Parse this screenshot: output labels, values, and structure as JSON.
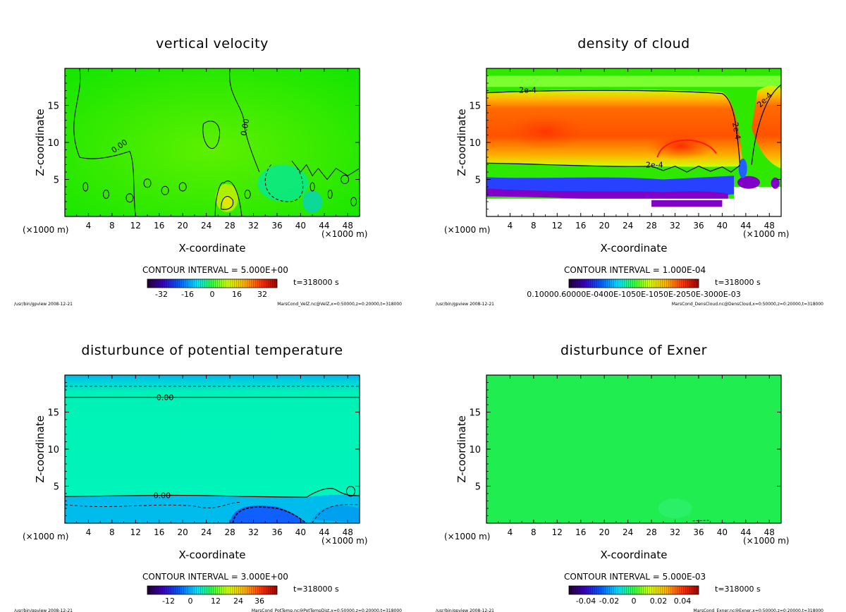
{
  "panels": [
    {
      "title": "vertical velocity",
      "xlabel": "X-coordinate",
      "ylabel": "Z-coordinate",
      "x_unit_left": "(×1000 m)",
      "x_unit_right": "(×1000 m)",
      "x_ticks": [
        "4",
        "8",
        "12",
        "16",
        "20",
        "24",
        "28",
        "32",
        "36",
        "40",
        "44",
        "48"
      ],
      "y_ticks": [
        "5",
        "10",
        "15"
      ],
      "contour_interval": "CONTOUR INTERVAL = 5.000E+00",
      "time": "t=318000 s",
      "colorbar_labels": [
        "-32",
        "-16",
        "0",
        "16",
        "32"
      ],
      "footer_left": "/usr/bin/gpview  2008-12-21",
      "footer_right": "MarsCond_VelZ.nc@VelZ,x=0:50000,z=0:20000,t=318000",
      "contour_labels": [
        "0.00",
        "0.00"
      ]
    },
    {
      "title": "density of cloud",
      "xlabel": "X-coordinate",
      "ylabel": "Z-coordinate",
      "x_unit_left": "(×1000 m)",
      "x_unit_right": "(×1000 m)",
      "x_ticks": [
        "4",
        "8",
        "12",
        "16",
        "20",
        "24",
        "28",
        "32",
        "36",
        "40",
        "44",
        "48"
      ],
      "y_ticks": [
        "5",
        "10",
        "15"
      ],
      "contour_interval": "CONTOUR INTERVAL = 1.000E-04",
      "time": "t=318000 s",
      "colorbar_labels": [
        "0.10000.60000E-0400E-1050E-1050E-2050E-3000E-03"
      ],
      "footer_left": "/usr/bin/gpview  2008-12-21",
      "footer_right": "MarsCond_DensCloud.nc@DensCloud,x=0:50000,z=0:20000,t=318000",
      "contour_labels": [
        "2e-4",
        "2e-4",
        "2e-4",
        "2e-4"
      ]
    },
    {
      "title": "disturbunce of potential temperature",
      "xlabel": "X-coordinate",
      "ylabel": "Z-coordinate",
      "x_unit_left": "(×1000 m)",
      "x_unit_right": "(×1000 m)",
      "x_ticks": [
        "4",
        "8",
        "12",
        "16",
        "20",
        "24",
        "28",
        "32",
        "36",
        "40",
        "44",
        "48"
      ],
      "y_ticks": [
        "5",
        "10",
        "15"
      ],
      "contour_interval": "CONTOUR INTERVAL = 3.000E+00",
      "time": "t=318000 s",
      "colorbar_labels": [
        "-12",
        "0",
        "12",
        "24",
        "36"
      ],
      "footer_left": "/usr/bin/gpview  2008-12-21",
      "footer_right": "MarsCond_PotTemp.nc@PotTempDist,x=0:50000,z=0:20000,t=318000",
      "contour_labels": [
        "0.00",
        "0.00"
      ]
    },
    {
      "title": "disturbunce of Exner",
      "xlabel": "X-coordinate",
      "ylabel": "Z-coordinate",
      "x_unit_left": "(×1000 m)",
      "x_unit_right": "(×1000 m)",
      "x_ticks": [
        "4",
        "8",
        "12",
        "16",
        "20",
        "24",
        "28",
        "32",
        "36",
        "40",
        "44",
        "48"
      ],
      "y_ticks": [
        "5",
        "10",
        "15"
      ],
      "contour_interval": "CONTOUR INTERVAL = 5.000E-03",
      "time": "t=318000 s",
      "colorbar_labels": [
        "-0.04",
        "-0.02",
        "0",
        "0.02",
        "0.04"
      ],
      "footer_left": "/usr/bin/gpview  2008-12-21",
      "footer_right": "MarsCond_Exner.nc@Exner,x=0:50000,z=0:20000,t=318000",
      "contour_labels": []
    }
  ],
  "chart_data": [
    {
      "type": "heatmap",
      "title": "vertical velocity",
      "xlabel": "X-coordinate",
      "ylabel": "Z-coordinate",
      "xlim": [
        0,
        50
      ],
      "ylim": [
        0,
        20
      ],
      "x_ticks": [
        4,
        8,
        12,
        16,
        20,
        24,
        28,
        32,
        36,
        40,
        44,
        48
      ],
      "y_ticks": [
        5,
        10,
        15
      ],
      "contour_interval": 5.0,
      "colorbar_ticks": [
        -32,
        -16,
        0,
        16,
        32
      ],
      "colormap": "rainbow",
      "dominant_color": "#1ee600",
      "features": [
        {
          "kind": "updraft",
          "x": 28,
          "z": 2.5,
          "sign": "positive"
        },
        {
          "kind": "downdraft",
          "x": 37,
          "z": 5.0,
          "sign": "negative"
        }
      ]
    },
    {
      "type": "heatmap",
      "title": "density of cloud",
      "xlabel": "X-coordinate",
      "ylabel": "Z-coordinate",
      "xlim": [
        0,
        50
      ],
      "ylim": [
        0,
        20
      ],
      "x_ticks": [
        4,
        8,
        12,
        16,
        20,
        24,
        28,
        32,
        36,
        40,
        44,
        48
      ],
      "y_ticks": [
        5,
        10,
        15
      ],
      "contour_interval": 0.0001,
      "colormap": "rainbow",
      "cloud_layer_z": [
        7,
        17
      ],
      "cloud_base_z": 3,
      "contour_level": "2e-4"
    },
    {
      "type": "heatmap",
      "title": "disturbunce of potential temperature",
      "xlabel": "X-coordinate",
      "ylabel": "Z-coordinate",
      "xlim": [
        0,
        50
      ],
      "ylim": [
        0,
        20
      ],
      "x_ticks": [
        4,
        8,
        12,
        16,
        20,
        24,
        28,
        32,
        36,
        40,
        44,
        48
      ],
      "y_ticks": [
        5,
        10,
        15
      ],
      "contour_interval": 3.0,
      "colorbar_ticks": [
        -12,
        0,
        12,
        24,
        36
      ],
      "colormap": "rainbow",
      "dominant_color": "#00f4b8",
      "zero_contours_z": [
        17,
        3.6
      ]
    },
    {
      "type": "heatmap",
      "title": "disturbunce of Exner",
      "xlabel": "X-coordinate",
      "ylabel": "Z-coordinate",
      "xlim": [
        0,
        50
      ],
      "ylim": [
        0,
        20
      ],
      "x_ticks": [
        4,
        8,
        12,
        16,
        20,
        24,
        28,
        32,
        36,
        40,
        44,
        48
      ],
      "y_ticks": [
        5,
        10,
        15
      ],
      "contour_interval": 0.005,
      "colorbar_ticks": [
        -0.04,
        -0.02,
        0,
        0.02,
        0.04
      ],
      "colormap": "rainbow",
      "dominant_color": "#1ef04a"
    }
  ],
  "colors": {
    "vv_bg": "#20e600",
    "cloud_core": "#ff5a00",
    "cloud_edge": "#6aff2a",
    "pt_bg": "#00f2b4",
    "pt_top": "#00b4e8",
    "exner_bg": "#20ee50"
  }
}
